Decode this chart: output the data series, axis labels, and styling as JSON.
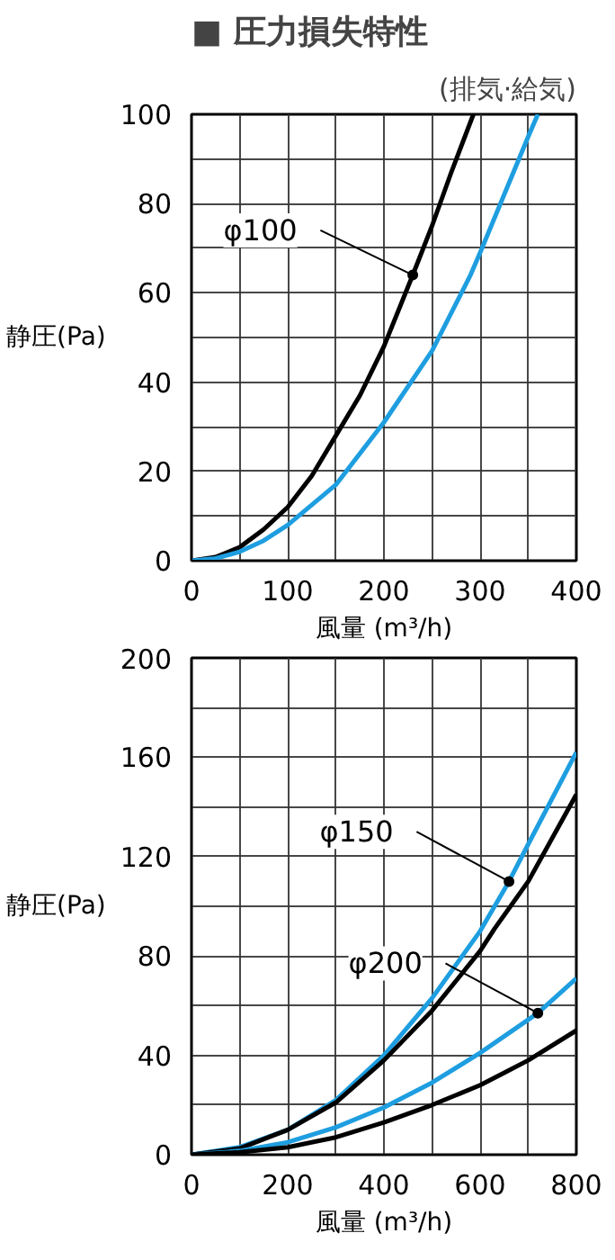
{
  "chart_data": [
    {
      "type": "line",
      "title": "■ 圧力損失特性",
      "subtitle": "(排気·給気)",
      "xlabel": "風量 (m³/h)",
      "ylabel": "静圧(Pa)",
      "xlim": [
        0,
        400
      ],
      "ylim": [
        0,
        100
      ],
      "xticks": [
        0,
        {
          "value": 50,
          "label": null
        },
        100,
        {
          "value": 150,
          "label": null
        },
        200,
        {
          "value": 250,
          "label": null
        },
        300,
        {
          "value": 350,
          "label": null
        },
        400
      ],
      "yticks": [
        0,
        {
          "value": 10,
          "label": null
        },
        20,
        {
          "value": 30,
          "label": null
        },
        40,
        {
          "value": 50,
          "label": null
        },
        60,
        {
          "value": 70,
          "label": null
        },
        80,
        {
          "value": 90,
          "label": null
        },
        100
      ],
      "grid": true,
      "marker": "none",
      "line_style": "solid",
      "series": [
        {
          "color": "#000000",
          "x": [
            0,
            25,
            50,
            75,
            100,
            125,
            150,
            175,
            200,
            230,
            250,
            270,
            293
          ],
          "values": [
            0,
            0.8,
            3,
            7,
            12,
            19,
            28,
            37,
            48,
            64,
            75,
            87,
            100
          ]
        },
        {
          "color": "#1e9ee0",
          "x": [
            0,
            25,
            50,
            75,
            100,
            150,
            200,
            250,
            290,
            300,
            325,
            350,
            360
          ],
          "values": [
            0,
            0.5,
            2,
            4.5,
            8,
            17,
            31,
            47,
            64,
            69,
            82,
            95,
            100
          ]
        }
      ],
      "annotations": [
        {
          "text": "φ100",
          "x": 230,
          "y": 64
        }
      ]
    },
    {
      "type": "line",
      "xlabel": "風量 (m³/h)",
      "ylabel": "静圧(Pa)",
      "xlim": [
        0,
        800
      ],
      "ylim": [
        0,
        200
      ],
      "xticks": [
        0,
        {
          "value": 100,
          "label": null
        },
        200,
        {
          "value": 300,
          "label": null
        },
        400,
        {
          "value": 500,
          "label": null
        },
        600,
        {
          "value": 700,
          "label": null
        },
        800
      ],
      "yticks": [
        0,
        {
          "value": 20,
          "label": null
        },
        40,
        {
          "value": 60,
          "label": null
        },
        80,
        {
          "value": 100,
          "label": null
        },
        120,
        {
          "value": 140,
          "label": null
        },
        160,
        {
          "value": 180,
          "label": null
        },
        200
      ],
      "grid": true,
      "marker": "none",
      "line_style": "solid",
      "series": [
        {
          "color": "#1e9ee0",
          "x": [
            0,
            100,
            200,
            300,
            400,
            500,
            600,
            660,
            700,
            800
          ],
          "values": [
            0,
            3,
            10,
            22,
            40,
            63,
            90,
            110,
            125,
            162
          ]
        },
        {
          "color": "#000000",
          "x": [
            0,
            100,
            200,
            300,
            400,
            500,
            600,
            630,
            700,
            800
          ],
          "values": [
            0,
            2.5,
            10,
            21,
            38,
            58,
            82,
            91,
            110,
            145
          ]
        },
        {
          "color": "#1e9ee0",
          "x": [
            0,
            100,
            200,
            300,
            400,
            500,
            600,
            720,
            800
          ],
          "values": [
            0,
            1.5,
            5,
            11,
            19,
            29,
            41,
            57,
            71
          ]
        },
        {
          "color": "#000000",
          "x": [
            0,
            100,
            200,
            300,
            400,
            500,
            600,
            650,
            700,
            800
          ],
          "values": [
            0,
            1,
            3,
            7,
            13,
            20,
            28,
            33,
            38,
            50
          ]
        }
      ],
      "annotations": [
        {
          "text": "φ150",
          "x": 660,
          "y": 110
        },
        {
          "text": "φ200",
          "x": 720,
          "y": 57
        }
      ]
    }
  ]
}
